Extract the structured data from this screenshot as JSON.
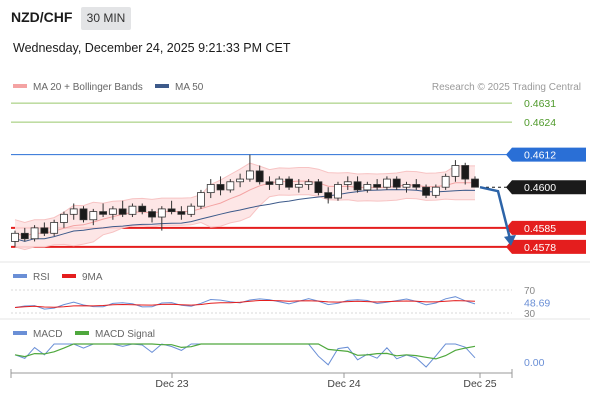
{
  "header": {
    "symbol": "NZD/CHF",
    "timeframe": "30 MIN",
    "datetime": "Wednesday, December 24, 2025 9:21:33 PM CET"
  },
  "legend": {
    "ma20_label": "MA 20 + Bollinger Bands",
    "ma50_label": "MA 50",
    "copyright": "Research © 2025 Trading Central"
  },
  "colors": {
    "up_candle": "#ffffff",
    "down_candle": "#1a1a1a",
    "ma20_band": "#f4a3a3",
    "ma50": "#3d5a8a",
    "resistance": "#99c86b",
    "pivot": "#2a6fd6",
    "support": "#e41e1e",
    "last_price": "#1a1a1a",
    "forecast_arrow": "#2d64a8",
    "rsi": "#6a8fd6",
    "rsi_ma": "#e41e1e",
    "macd": "#6a8fd6",
    "macd_signal": "#4fa83d"
  },
  "chart_data": [
    {
      "type": "candlestick",
      "title": "NZD/CHF",
      "x_ticks": [
        "Dec 23",
        "Dec 24",
        "Dec 25"
      ],
      "ylim": [
        0.4575,
        0.4634
      ],
      "series": [
        {
          "name": "MA 20 + Bollinger Bands",
          "kind": "band"
        },
        {
          "name": "MA 50",
          "kind": "line"
        }
      ],
      "candles_approx": [
        [
          0.458,
          0.4584,
          0.4578,
          0.4583
        ],
        [
          0.4583,
          0.4585,
          0.458,
          0.4581
        ],
        [
          0.4581,
          0.4586,
          0.458,
          0.4585
        ],
        [
          0.4585,
          0.4587,
          0.4582,
          0.4583
        ],
        [
          0.4583,
          0.4588,
          0.4582,
          0.4587
        ],
        [
          0.4587,
          0.4591,
          0.4585,
          0.459
        ],
        [
          0.459,
          0.4594,
          0.4588,
          0.4592
        ],
        [
          0.4592,
          0.4593,
          0.4587,
          0.4588
        ],
        [
          0.4588,
          0.4592,
          0.4586,
          0.4591
        ],
        [
          0.4591,
          0.4594,
          0.4589,
          0.459
        ],
        [
          0.459,
          0.4593,
          0.4588,
          0.4592
        ],
        [
          0.4592,
          0.4595,
          0.4589,
          0.459
        ],
        [
          0.459,
          0.4594,
          0.4589,
          0.4593
        ],
        [
          0.4593,
          0.4594,
          0.459,
          0.4591
        ],
        [
          0.4591,
          0.4592,
          0.4587,
          0.4589
        ],
        [
          0.4589,
          0.4593,
          0.4584,
          0.4592
        ],
        [
          0.4592,
          0.4595,
          0.459,
          0.4591
        ],
        [
          0.4591,
          0.4593,
          0.4588,
          0.459
        ],
        [
          0.459,
          0.4594,
          0.4589,
          0.4593
        ],
        [
          0.4593,
          0.4599,
          0.4592,
          0.4598
        ],
        [
          0.4598,
          0.4603,
          0.4596,
          0.4601
        ],
        [
          0.4601,
          0.4604,
          0.4597,
          0.4599
        ],
        [
          0.4599,
          0.4603,
          0.4598,
          0.4602
        ],
        [
          0.4602,
          0.4605,
          0.46,
          0.4603
        ],
        [
          0.4603,
          0.4612,
          0.4602,
          0.4606
        ],
        [
          0.4606,
          0.4608,
          0.4601,
          0.4602
        ],
        [
          0.4602,
          0.4604,
          0.4599,
          0.4601
        ],
        [
          0.4601,
          0.4604,
          0.4599,
          0.4603
        ],
        [
          0.4603,
          0.4604,
          0.4599,
          0.46
        ],
        [
          0.46,
          0.4603,
          0.4598,
          0.4601
        ],
        [
          0.4601,
          0.4603,
          0.4599,
          0.4602
        ],
        [
          0.4602,
          0.4603,
          0.4597,
          0.4598
        ],
        [
          0.4598,
          0.46,
          0.4594,
          0.4596
        ],
        [
          0.4596,
          0.4602,
          0.4595,
          0.4601
        ],
        [
          0.4601,
          0.4604,
          0.4599,
          0.4602
        ],
        [
          0.4602,
          0.4604,
          0.4598,
          0.4599
        ],
        [
          0.4599,
          0.4602,
          0.4598,
          0.4601
        ],
        [
          0.4601,
          0.4603,
          0.4599,
          0.46
        ],
        [
          0.46,
          0.4604,
          0.4599,
          0.4603
        ],
        [
          0.4603,
          0.4604,
          0.4599,
          0.46
        ],
        [
          0.46,
          0.4602,
          0.4598,
          0.4601
        ],
        [
          0.4601,
          0.4603,
          0.4599,
          0.46
        ],
        [
          0.46,
          0.4601,
          0.4596,
          0.4597
        ],
        [
          0.4597,
          0.4601,
          0.4596,
          0.46
        ],
        [
          0.46,
          0.4605,
          0.4599,
          0.4604
        ],
        [
          0.4604,
          0.461,
          0.4602,
          0.4608
        ],
        [
          0.4608,
          0.4609,
          0.4601,
          0.4603
        ],
        [
          0.4603,
          0.4604,
          0.46,
          0.46
        ]
      ]
    },
    {
      "type": "line",
      "title": "RSI",
      "series": [
        {
          "name": "RSI"
        },
        {
          "name": "9MA"
        }
      ],
      "y_ticks": [
        70,
        30
      ],
      "last_value": "48.69",
      "ylim": [
        30,
        70
      ]
    },
    {
      "type": "line",
      "title": "MACD",
      "series": [
        {
          "name": "MACD"
        },
        {
          "name": "MACD Signal"
        }
      ],
      "y_ticks": [
        "0.00"
      ]
    }
  ],
  "levels": [
    {
      "value": "0.4631",
      "kind": "resistance"
    },
    {
      "value": "0.4624",
      "kind": "resistance"
    },
    {
      "value": "0.4612",
      "kind": "pivot"
    },
    {
      "value": "0.4600",
      "kind": "last"
    },
    {
      "value": "0.4585",
      "kind": "support"
    },
    {
      "value": "0.4578",
      "kind": "support"
    }
  ],
  "panels": {
    "rsi": {
      "label": "RSI",
      "ma_label": "9MA",
      "tick_high": "70",
      "tick_low": "30",
      "value": "48.69"
    },
    "macd": {
      "label": "MACD",
      "signal_label": "MACD Signal",
      "zero_label": "0.00"
    }
  }
}
